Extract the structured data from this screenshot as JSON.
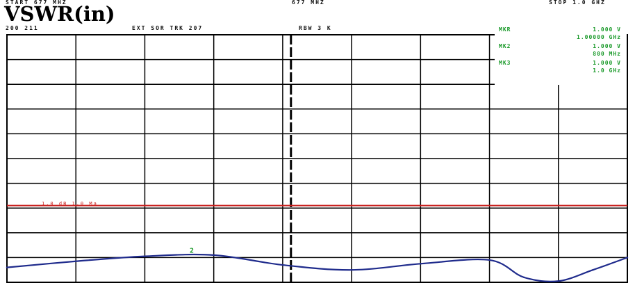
{
  "header": {
    "start_text": "START  677 MHZ",
    "center_text": "677 MHZ",
    "stop_text": "STOP 1.0 GHZ",
    "line2_left": "200 211",
    "line2_mid": "EXT SOR TRK 207",
    "line2_right": "RBW 3 K"
  },
  "title": "VSWR(in)",
  "markers": [
    {
      "label": "MKR",
      "values": [
        "1.000  V",
        "1.00000 GHz"
      ]
    },
    {
      "label": "MK2",
      "values": [
        "1.000  V",
        "800 MHz"
      ]
    },
    {
      "label": "MK3",
      "values": [
        "1.000  V",
        "1.0 GHz"
      ]
    }
  ],
  "reference_line_label": "1.0 dB 1.0 Ma",
  "chart_data": {
    "type": "line",
    "title": "VSWR(in)",
    "xlabel": "",
    "ylabel": "",
    "grid": true,
    "divisions": {
      "x": 9,
      "y": 10
    },
    "x_range": [
      0,
      9
    ],
    "y_range": [
      0,
      10
    ],
    "reference_line": {
      "y": 3.1,
      "color": "#c8201e"
    },
    "series": [
      {
        "color": "#1f2b8c",
        "x": [
          0,
          1,
          2,
          3,
          4,
          5,
          6,
          7,
          7.5,
          8,
          8.5,
          9
        ],
        "y": [
          0.6,
          0.85,
          1.05,
          1.1,
          0.7,
          0.5,
          0.75,
          0.9,
          0.2,
          0.05,
          0.5,
          1.0
        ]
      }
    ],
    "point_markers": [
      {
        "label": "2",
        "x": 2.65,
        "y": 1.2,
        "color": "#1a9a2a"
      }
    ]
  }
}
